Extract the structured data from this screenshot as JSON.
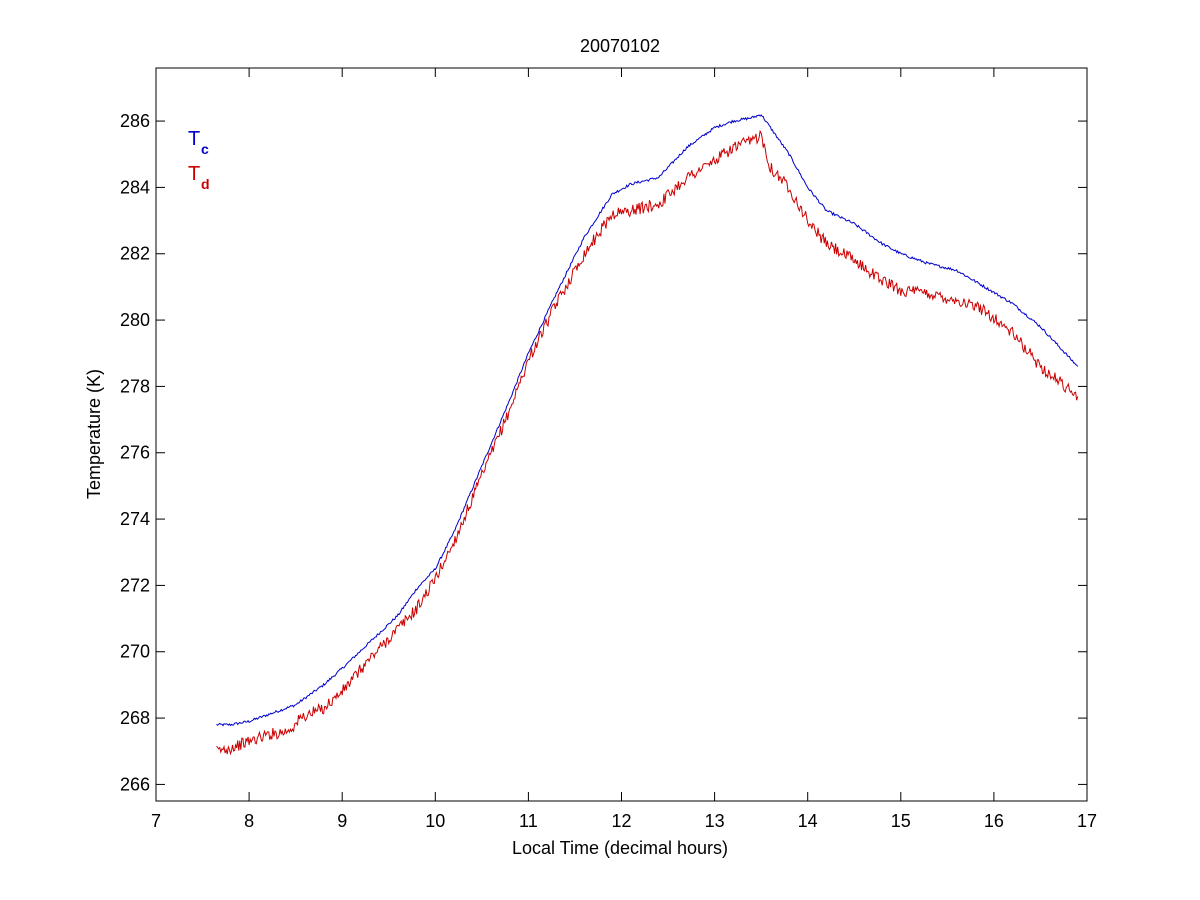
{
  "chart_data": {
    "type": "line",
    "title": "20070102",
    "xlabel": "Local Time (decimal hours)",
    "ylabel": "Temperature (K)",
    "xlim": [
      7,
      17
    ],
    "ylim": [
      265.5,
      287.6
    ],
    "xticks": [
      7,
      8,
      9,
      10,
      11,
      12,
      13,
      14,
      15,
      16,
      17
    ],
    "yticks": [
      266,
      268,
      270,
      272,
      274,
      276,
      278,
      280,
      282,
      284,
      286
    ],
    "grid": false,
    "legend_position": "top-left",
    "series": [
      {
        "name_main": "T",
        "name_sub": "c",
        "color": "#0000cc",
        "noise": 0.04,
        "x": [
          7.65,
          7.8,
          8.0,
          8.2,
          8.5,
          8.8,
          9.0,
          9.3,
          9.6,
          9.8,
          10.0,
          10.2,
          10.5,
          10.8,
          11.0,
          11.3,
          11.6,
          11.9,
          12.1,
          12.4,
          12.7,
          13.0,
          13.2,
          13.4,
          13.5,
          13.6,
          13.8,
          14.0,
          14.2,
          14.5,
          14.8,
          15.0,
          15.3,
          15.6,
          15.9,
          16.2,
          16.5,
          16.9
        ],
        "y": [
          267.8,
          267.8,
          267.9,
          268.1,
          268.4,
          269.0,
          269.5,
          270.3,
          271.1,
          271.9,
          272.5,
          273.6,
          275.6,
          277.6,
          279.0,
          280.8,
          282.5,
          283.8,
          284.1,
          284.3,
          285.2,
          285.8,
          286.0,
          286.1,
          286.2,
          285.8,
          285.0,
          284.0,
          283.3,
          282.9,
          282.3,
          282.0,
          281.7,
          281.5,
          281.0,
          280.5,
          279.8,
          278.6
        ]
      },
      {
        "name_main": "T",
        "name_sub": "d",
        "color": "#cc0000",
        "noise": 0.18,
        "x": [
          7.65,
          7.8,
          8.0,
          8.2,
          8.4,
          8.5,
          8.55,
          8.8,
          9.0,
          9.3,
          9.6,
          9.8,
          10.0,
          10.2,
          10.5,
          10.8,
          11.0,
          11.3,
          11.6,
          11.9,
          12.1,
          12.4,
          12.7,
          13.0,
          13.2,
          13.4,
          13.5,
          13.6,
          13.8,
          14.0,
          14.2,
          14.5,
          14.8,
          15.0,
          15.3,
          15.6,
          15.9,
          16.2,
          16.5,
          16.9
        ],
        "y": [
          267.0,
          267.1,
          267.3,
          267.5,
          267.6,
          267.8,
          268.0,
          268.3,
          268.8,
          269.8,
          270.7,
          271.3,
          272.2,
          273.3,
          275.3,
          277.3,
          278.8,
          280.5,
          282.0,
          283.2,
          283.3,
          283.5,
          284.3,
          284.8,
          285.2,
          285.4,
          285.6,
          284.6,
          284.0,
          283.0,
          282.3,
          281.8,
          281.2,
          280.9,
          280.8,
          280.6,
          280.3,
          279.6,
          278.6,
          277.7
        ]
      }
    ]
  }
}
